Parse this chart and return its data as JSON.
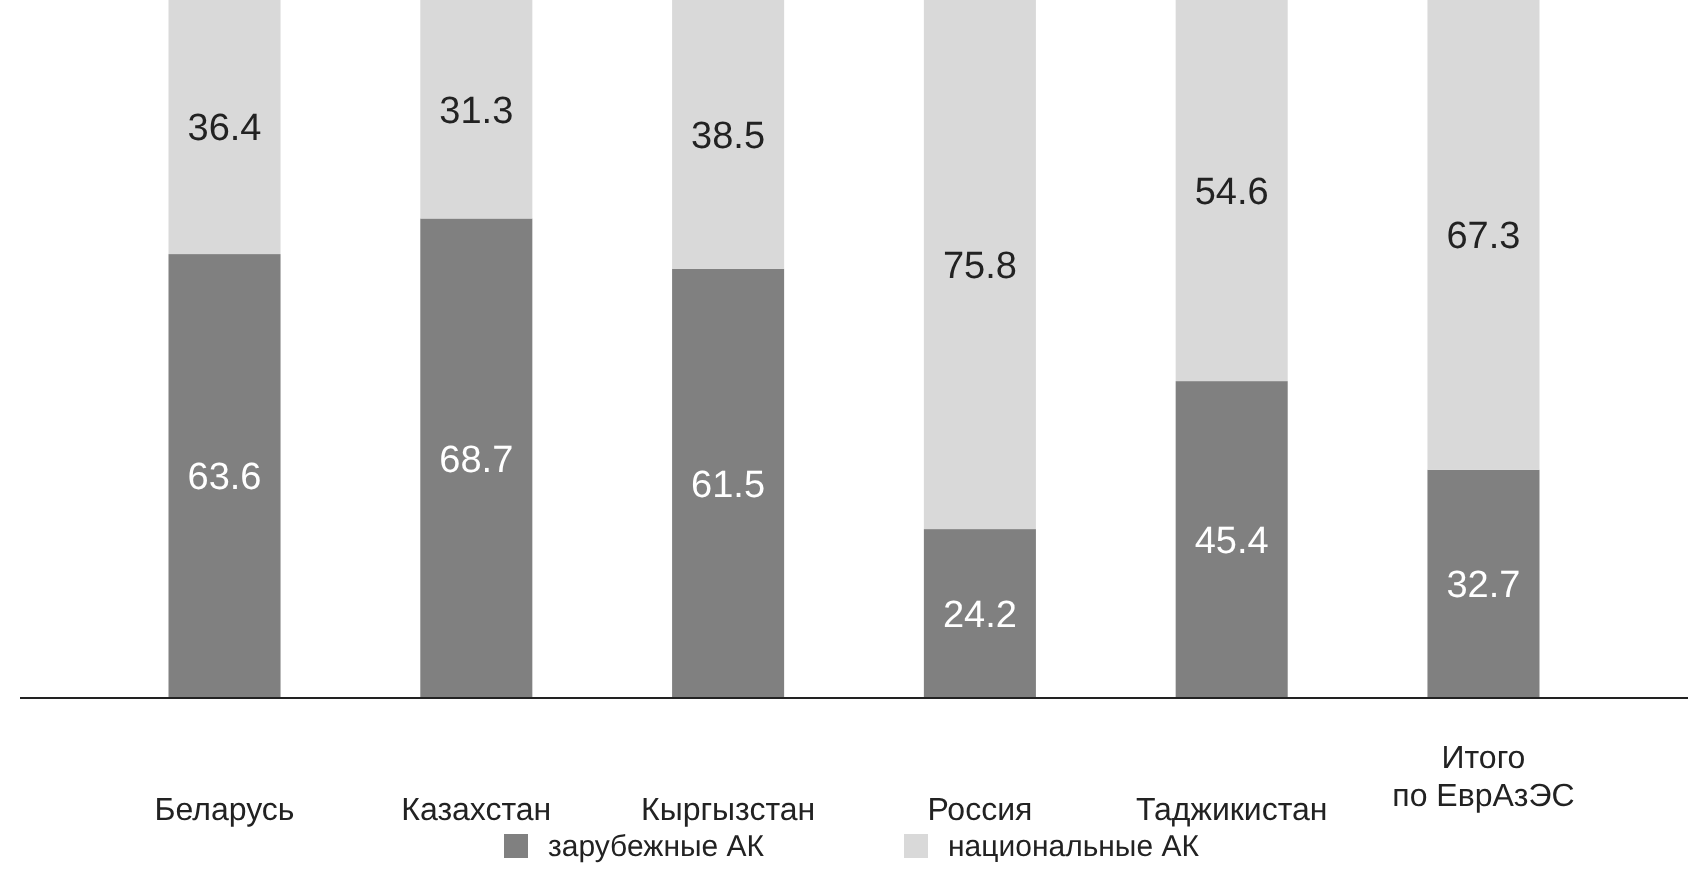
{
  "chart_data": {
    "type": "bar",
    "stacked": true,
    "categories": [
      "Беларусь",
      "Казахстан",
      "Кыргызстан",
      "Россия",
      "Таджикистан",
      "Итого\nпо ЕврАзЭС"
    ],
    "series": [
      {
        "name": "зарубежные АК",
        "color": "#808080",
        "values": [
          63.6,
          68.7,
          61.5,
          24.2,
          45.4,
          32.7
        ]
      },
      {
        "name": "национальные АК",
        "color": "#d9d9d9",
        "values": [
          36.4,
          31.3,
          38.5,
          75.8,
          54.6,
          67.3
        ]
      }
    ],
    "data_labels": true,
    "tick_labels": "x",
    "legend": "bottom"
  }
}
